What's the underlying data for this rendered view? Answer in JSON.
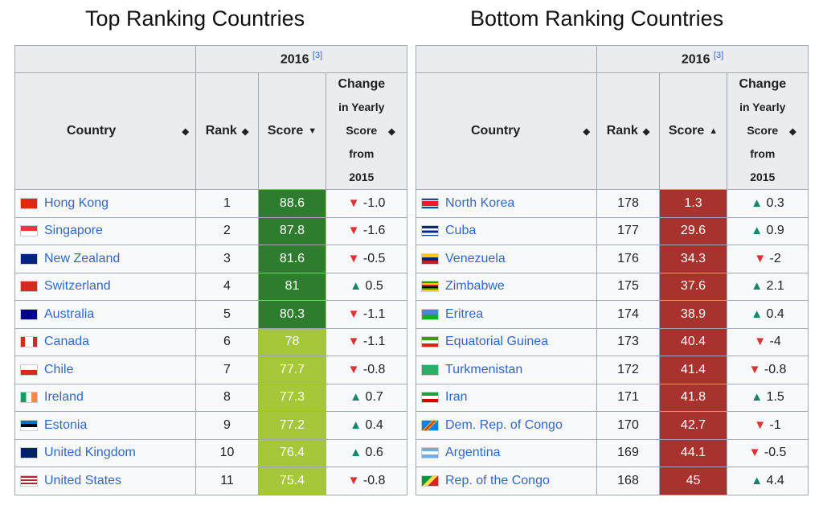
{
  "top": {
    "title": "Top Ranking Countries",
    "year_label": "2016",
    "ref": "[3]",
    "columns": {
      "country": "Country",
      "rank": "Rank",
      "score": "Score",
      "change_l1": "Change",
      "change_l2": "in Yearly",
      "change_l3": "Score",
      "change_l4": "from",
      "change_l5": "2015"
    },
    "rows": [
      {
        "country": "Hong Kong",
        "rank": "1",
        "score": "88.6",
        "change": "-1.0",
        "dir": "down",
        "score_color": "#2e7d2e",
        "flag": "hk-flag-icon"
      },
      {
        "country": "Singapore",
        "rank": "2",
        "score": "87.8",
        "change": "-1.6",
        "dir": "down",
        "score_color": "#2e7d2e",
        "flag": "sg-flag-icon"
      },
      {
        "country": "New Zealand",
        "rank": "3",
        "score": "81.6",
        "change": "-0.5",
        "dir": "down",
        "score_color": "#2e7d2e",
        "flag": "nz-flag-icon"
      },
      {
        "country": "Switzerland",
        "rank": "4",
        "score": "81",
        "change": "0.5",
        "dir": "up",
        "score_color": "#2e7d2e",
        "flag": "ch-flag-icon"
      },
      {
        "country": "Australia",
        "rank": "5",
        "score": "80.3",
        "change": "-1.1",
        "dir": "down",
        "score_color": "#2e7d2e",
        "flag": "au-flag-icon"
      },
      {
        "country": "Canada",
        "rank": "6",
        "score": "78",
        "change": "-1.1",
        "dir": "down",
        "score_color": "#a5c83a",
        "flag": "ca-flag-icon"
      },
      {
        "country": "Chile",
        "rank": "7",
        "score": "77.7",
        "change": "-0.8",
        "dir": "down",
        "score_color": "#a5c83a",
        "flag": "cl-flag-icon"
      },
      {
        "country": "Ireland",
        "rank": "8",
        "score": "77.3",
        "change": "0.7",
        "dir": "up",
        "score_color": "#a5c83a",
        "flag": "ie-flag-icon"
      },
      {
        "country": "Estonia",
        "rank": "9",
        "score": "77.2",
        "change": "0.4",
        "dir": "up",
        "score_color": "#a5c83a",
        "flag": "ee-flag-icon"
      },
      {
        "country": "United Kingdom",
        "rank": "10",
        "score": "76.4",
        "change": "0.6",
        "dir": "up",
        "score_color": "#a5c83a",
        "flag": "uk-flag-icon"
      },
      {
        "country": "United States",
        "rank": "11",
        "score": "75.4",
        "change": "-0.8",
        "dir": "down",
        "score_color": "#a5c83a",
        "flag": "us-flag-icon"
      }
    ]
  },
  "bottom": {
    "title": "Bottom Ranking Countries",
    "year_label": "2016",
    "ref": "[3]",
    "columns": {
      "country": "Country",
      "rank": "Rank",
      "score": "Score",
      "change_l1": "Change",
      "change_l2": "in Yearly",
      "change_l3": "Score",
      "change_l4": "from",
      "change_l5": "2015"
    },
    "rows": [
      {
        "country": "North Korea",
        "rank": "178",
        "score": "1.3",
        "change": "0.3",
        "dir": "up",
        "score_color": "#a8322d",
        "flag": "kp-flag-icon"
      },
      {
        "country": "Cuba",
        "rank": "177",
        "score": "29.6",
        "change": "0.9",
        "dir": "up",
        "score_color": "#a8322d",
        "flag": "cu-flag-icon"
      },
      {
        "country": "Venezuela",
        "rank": "176",
        "score": "34.3",
        "change": "-2",
        "dir": "down",
        "score_color": "#a8322d",
        "flag": "ve-flag-icon"
      },
      {
        "country": "Zimbabwe",
        "rank": "175",
        "score": "37.6",
        "change": "2.1",
        "dir": "up",
        "score_color": "#a8322d",
        "flag": "zw-flag-icon"
      },
      {
        "country": "Eritrea",
        "rank": "174",
        "score": "38.9",
        "change": "0.4",
        "dir": "up",
        "score_color": "#a8322d",
        "flag": "er-flag-icon"
      },
      {
        "country": "Equatorial Guinea",
        "rank": "173",
        "score": "40.4",
        "change": "-4",
        "dir": "down",
        "score_color": "#a8322d",
        "flag": "gq-flag-icon"
      },
      {
        "country": "Turkmenistan",
        "rank": "172",
        "score": "41.4",
        "change": "-0.8",
        "dir": "down",
        "score_color": "#a8322d",
        "flag": "tm-flag-icon"
      },
      {
        "country": "Iran",
        "rank": "171",
        "score": "41.8",
        "change": "1.5",
        "dir": "up",
        "score_color": "#a8322d",
        "flag": "ir-flag-icon"
      },
      {
        "country": "Dem. Rep. of Congo",
        "rank": "170",
        "score": "42.7",
        "change": "-1",
        "dir": "down",
        "score_color": "#a8322d",
        "flag": "cd-flag-icon"
      },
      {
        "country": "Argentina",
        "rank": "169",
        "score": "44.1",
        "change": "-0.5",
        "dir": "down",
        "score_color": "#a8322d",
        "flag": "ar-flag-icon"
      },
      {
        "country": "Rep. of the Congo",
        "rank": "168",
        "score": "45",
        "change": "4.4",
        "dir": "up",
        "score_color": "#a8322d",
        "flag": "cg-flag-icon"
      }
    ]
  },
  "flags": {
    "hk-flag-icon": "linear-gradient(#de2910,#de2910)",
    "sg-flag-icon": "linear-gradient(#ef3340 50%,#ffffff 50%)",
    "nz-flag-icon": "linear-gradient(#00247d,#00247d)",
    "ch-flag-icon": "linear-gradient(#d52b1e,#d52b1e)",
    "au-flag-icon": "linear-gradient(#00008b,#00008b)",
    "ca-flag-icon": "linear-gradient(90deg,#d52b1e 25%,#ffffff 25%,#ffffff 75%,#d52b1e 75%)",
    "cl-flag-icon": "linear-gradient(#ffffff 50%,#d52b1e 50%)",
    "ie-flag-icon": "linear-gradient(90deg,#169b62 33%,#ffffff 33%,#ffffff 66%,#ff883e 66%)",
    "ee-flag-icon": "linear-gradient(#0072ce 33%,#000000 33%,#000000 66%,#ffffff 66%)",
    "uk-flag-icon": "linear-gradient(#012169,#012169)",
    "us-flag-icon": "repeating-linear-gradient(#b22234 0 2px,#ffffff 2px 4px)",
    "kp-flag-icon": "linear-gradient(#024fa2 18%,#ffffff 18%,#ffffff 24%,#ed1c27 24%,#ed1c27 76%,#ffffff 76%,#ffffff 82%,#024fa2 82%)",
    "cu-flag-icon": "repeating-linear-gradient(#002a8f 0 3px,#ffffff 3px 5.5px)",
    "ve-flag-icon": "linear-gradient(#ffcc00 33%,#00247d 33%,#00247d 66%,#cf142b 66%)",
    "zw-flag-icon": "repeating-linear-gradient(#319208 0 2px,#ffd200 2px 4px,#de2010 4px 6px,#000000 6px 8px)",
    "er-flag-icon": "linear-gradient(#4189dd 50%,#12ad2b 50%)",
    "gq-flag-icon": "linear-gradient(#3e9a00 33%,#ffffff 33%,#ffffff 66%,#e32118 66%)",
    "tm-flag-icon": "linear-gradient(#28ae66,#28ae66)",
    "ir-flag-icon": "linear-gradient(#239f40 33%,#ffffff 33%,#ffffff 66%,#da0000 66%)",
    "cd-flag-icon": "linear-gradient(135deg,#007fff 40%,#f7d618 40%,#ce1021 50%,#f7d618 60%,#007fff 60%)",
    "ar-flag-icon": "linear-gradient(#74acdf 33%,#ffffff 33%,#ffffff 66%,#74acdf 66%)",
    "cg-flag-icon": "linear-gradient(135deg,#009543 40%,#fbde4a 40%,#fbde4a 60%,#dc241f 60%)"
  }
}
